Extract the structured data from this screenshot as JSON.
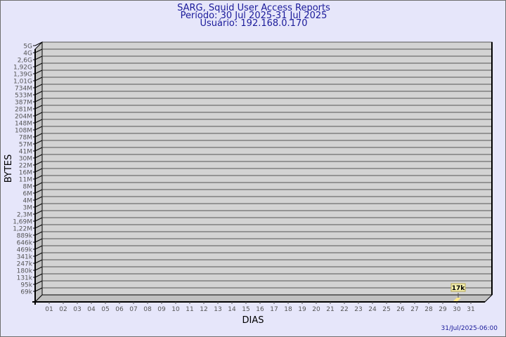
{
  "chart_data": {
    "type": "bar",
    "title": "SARG, Squid User Access Reports",
    "subtitle_period": "Período: 30 Jul 2025-31 Jul 2025",
    "subtitle_user": "Usuário: 192.168.0.170",
    "xlabel": "DIAS",
    "ylabel": "BYTES",
    "footer": "31/Jul/2025-06:00",
    "categories": [
      "01",
      "02",
      "03",
      "04",
      "05",
      "06",
      "07",
      "08",
      "09",
      "10",
      "11",
      "12",
      "13",
      "14",
      "15",
      "16",
      "17",
      "18",
      "19",
      "20",
      "21",
      "22",
      "23",
      "24",
      "25",
      "26",
      "27",
      "28",
      "29",
      "30",
      "31"
    ],
    "y_tick_labels": [
      "69k",
      "95k",
      "131k",
      "180k",
      "247k",
      "341k",
      "469k",
      "646k",
      "889k",
      "1,22M",
      "1,69M",
      "2,3M",
      "3M",
      "4M",
      "6M",
      "8M",
      "11M",
      "16M",
      "22M",
      "30M",
      "41M",
      "57M",
      "78M",
      "108M",
      "148M",
      "204M",
      "281M",
      "387M",
      "533M",
      "734M",
      "1,01G",
      "1,39G",
      "1,92G",
      "2,6G",
      "4G",
      "5G"
    ],
    "points": [
      {
        "x": "30",
        "value_label": "17k"
      }
    ],
    "grid": true,
    "colors": {
      "background": "#e6e6fa",
      "plot": "#d3d3d3",
      "title": "#1a1a9a",
      "bar": "#ffe88a",
      "label_box": "#f5f0b0"
    }
  }
}
